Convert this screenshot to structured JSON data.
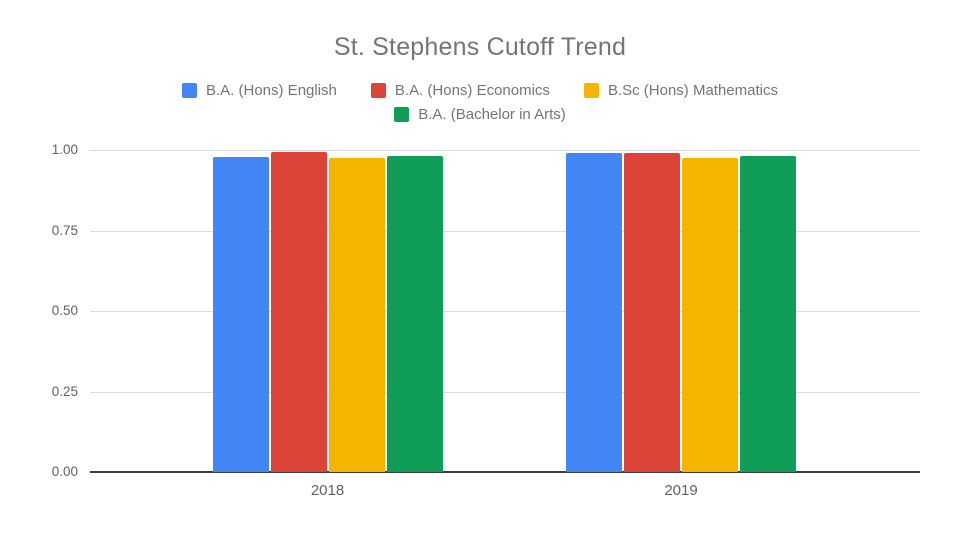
{
  "chart_data": {
    "type": "bar",
    "title": "St. Stephens Cutoff Trend",
    "categories": [
      "2018",
      "2019"
    ],
    "series": [
      {
        "name": "B.A. (Hons) English",
        "color": "#4285f4",
        "values": [
          0.9775,
          0.99
        ]
      },
      {
        "name": "B.A. (Hons) Economics",
        "color": "#db4437",
        "values": [
          0.9925,
          0.99
        ]
      },
      {
        "name": "B.Sc (Hons) Mathematics",
        "color": "#f4b400",
        "values": [
          0.975,
          0.975
        ]
      },
      {
        "name": "B.A. (Bachelor in Arts)",
        "color": "#0f9d58",
        "values": [
          0.9825,
          0.98
        ]
      }
    ],
    "xlabel": "",
    "ylabel": "",
    "ylim": [
      0,
      1
    ],
    "yticks": [
      {
        "value": 0.0,
        "label": "0.00"
      },
      {
        "value": 0.25,
        "label": "0.25"
      },
      {
        "value": 0.5,
        "label": "0.50"
      },
      {
        "value": 0.75,
        "label": "0.75"
      },
      {
        "value": 1.0,
        "label": "1.00"
      }
    ],
    "grid": true,
    "legend_position": "top"
  },
  "colors": {
    "title_text": "#757575",
    "legend_text": "#757575",
    "axis_text": "#616161",
    "gridline": "#dcdcdc",
    "baseline": "#3c3c3c",
    "background": "#ffffff"
  }
}
